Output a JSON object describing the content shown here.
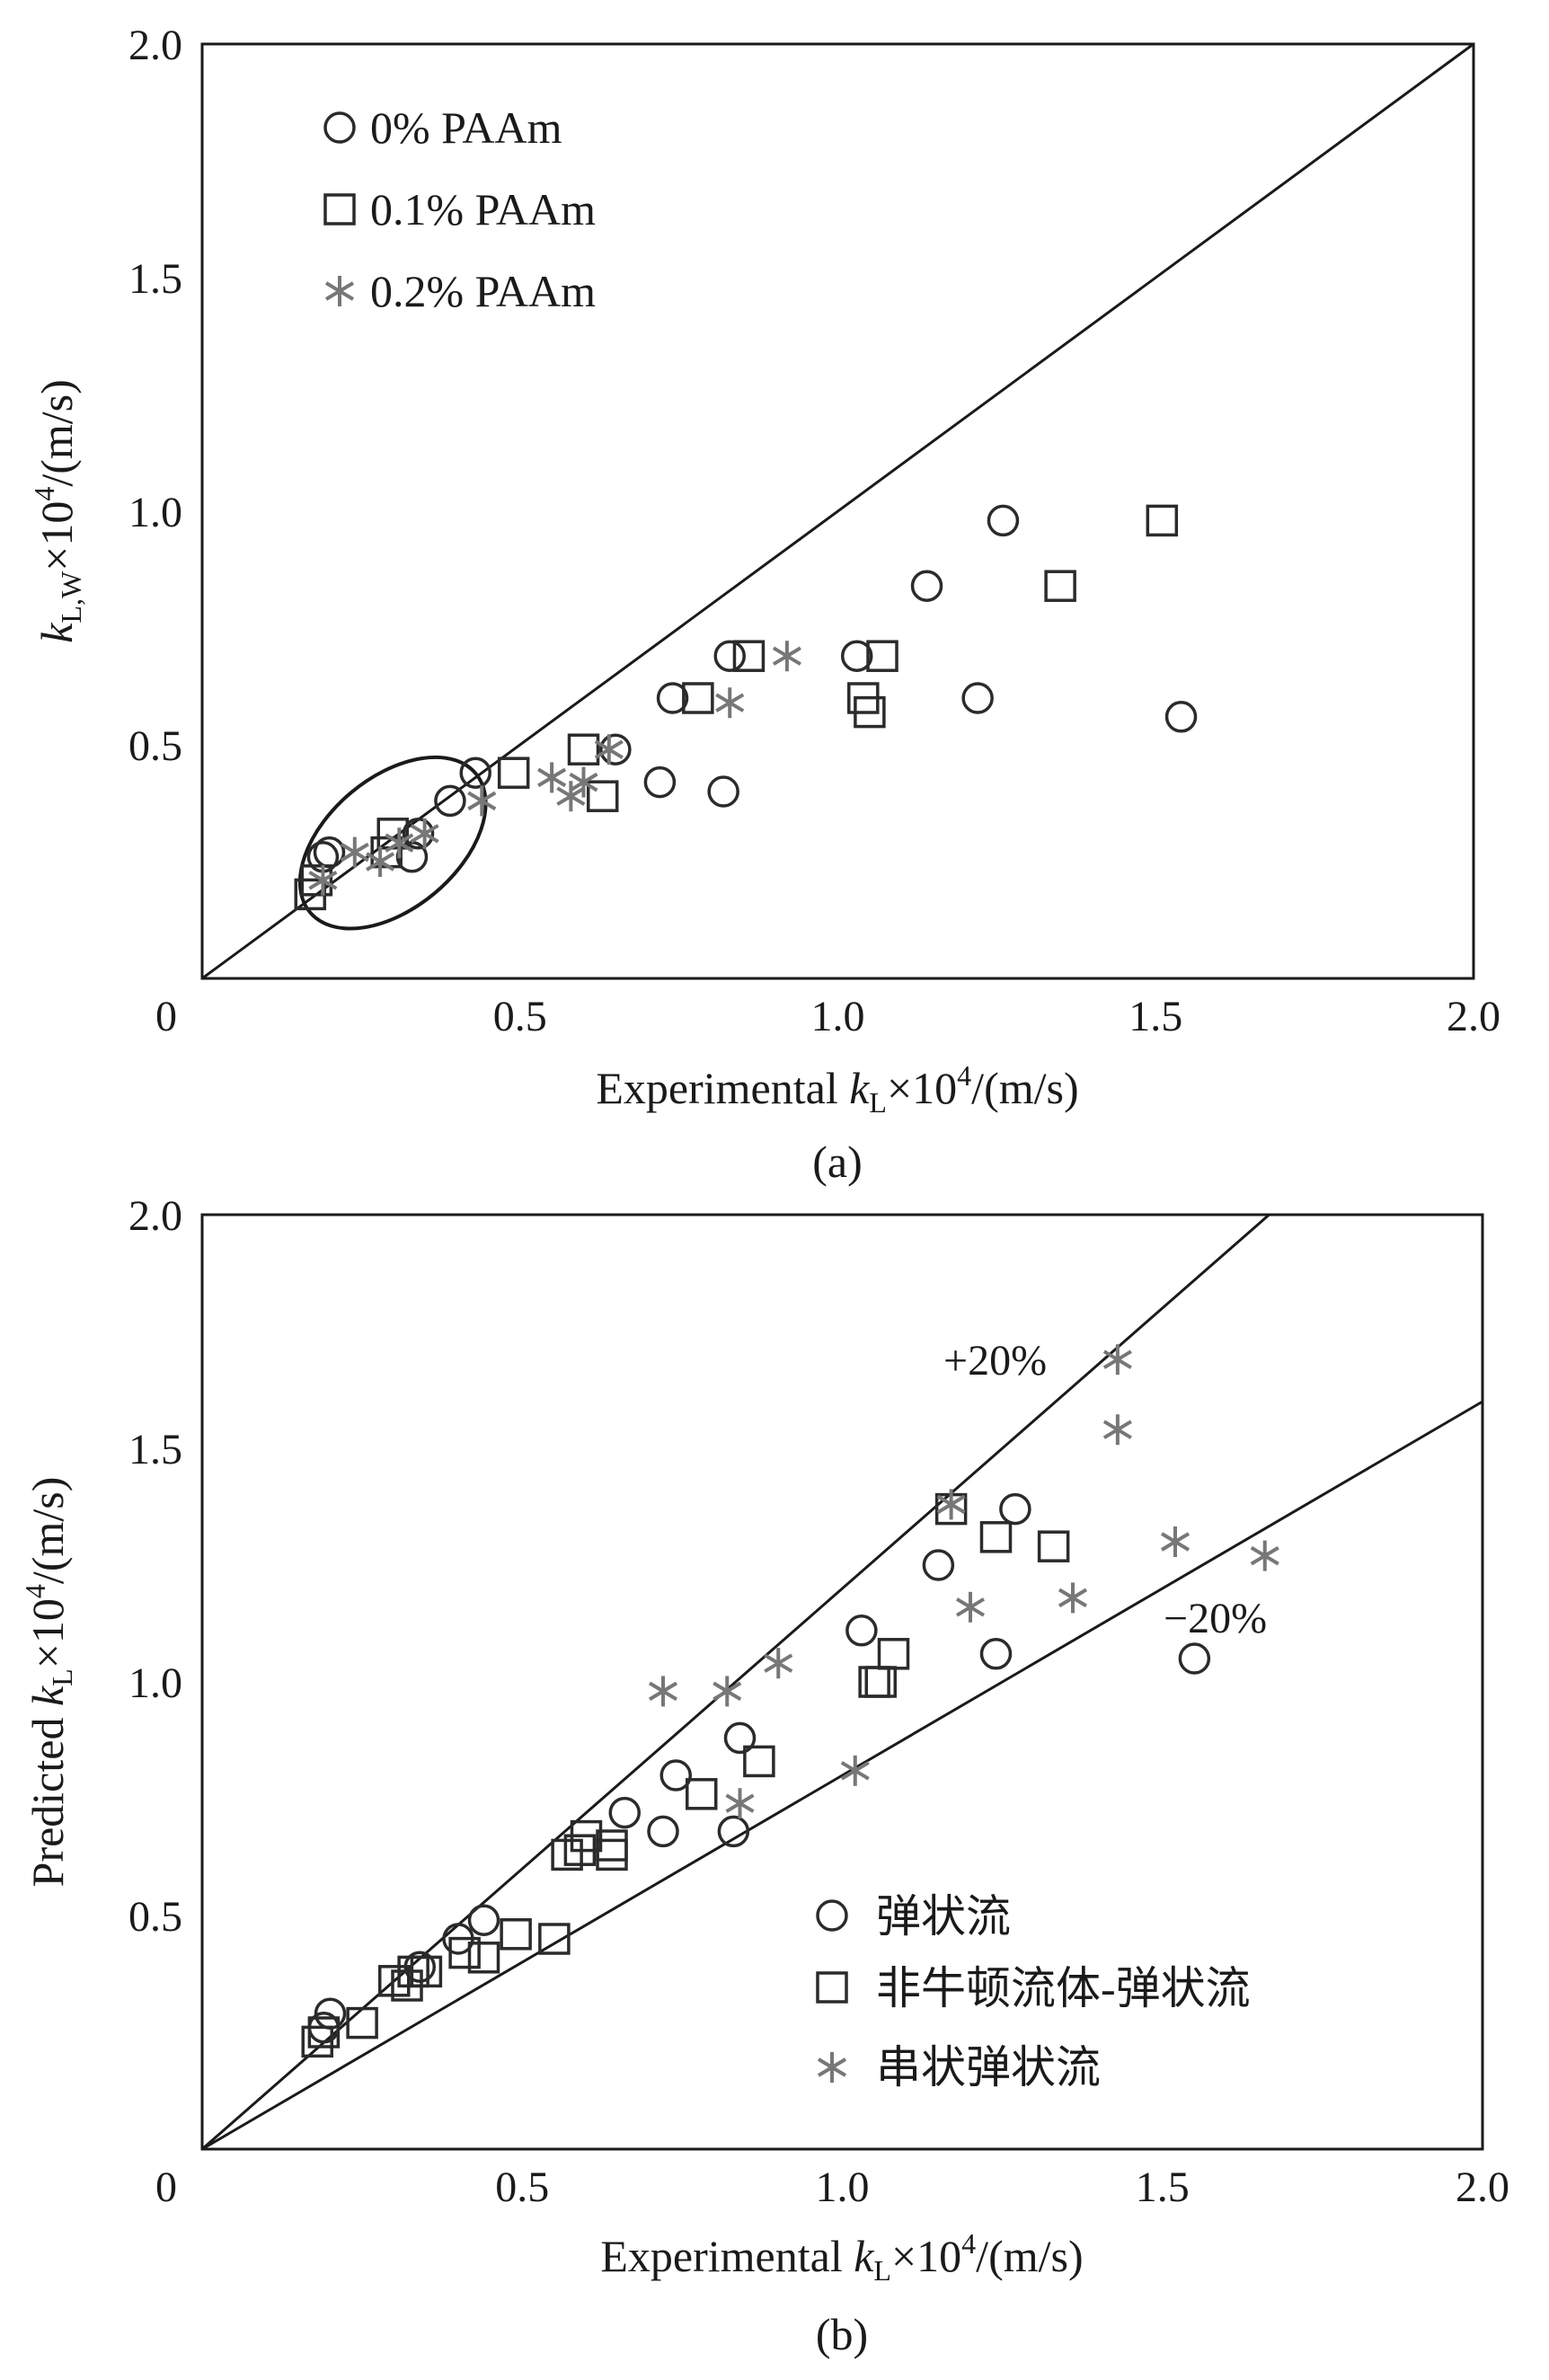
{
  "chart_data": [
    {
      "panel": "a",
      "type": "scatter",
      "caption": "(a)",
      "xlabel": {
        "main": "Experimental ",
        "italic": "k",
        "sub": "L",
        "tail": "×10",
        "sup": "4",
        "unit": "/(m/s)"
      },
      "ylabel": {
        "italic": "k",
        "sub": "L,W",
        "tail": "×10",
        "sup": "4",
        "unit": "/(m/s)"
      },
      "xlim": [
        0,
        2.0
      ],
      "ylim": [
        0,
        2.0
      ],
      "xticks": [
        "0",
        "0.5",
        "1.0",
        "1.5",
        "2.0"
      ],
      "yticks": [
        "0.5",
        "1.0",
        "1.5",
        "2.0"
      ],
      "reference_lines": [
        {
          "name": "y = x",
          "slope": 1.0
        }
      ],
      "annotations": [
        {
          "name": "highlight-ellipse",
          "shape": "ellipse",
          "center": [
            0.3,
            0.29
          ],
          "radii": [
            0.17,
            0.14
          ],
          "angle_deg": -40
        }
      ],
      "legend_position": "top-left",
      "series": [
        {
          "name": "0% PAAm",
          "marker": "circle",
          "color": "#2b2b2b",
          "points": [
            [
              0.19,
              0.26
            ],
            [
              0.2,
              0.27
            ],
            [
              0.33,
              0.26
            ],
            [
              0.34,
              0.31
            ],
            [
              0.39,
              0.38
            ],
            [
              0.43,
              0.44
            ],
            [
              0.65,
              0.49
            ],
            [
              0.72,
              0.42
            ],
            [
              0.74,
              0.6
            ],
            [
              0.82,
              0.4
            ],
            [
              0.83,
              0.69
            ],
            [
              1.03,
              0.69
            ],
            [
              1.14,
              0.84
            ],
            [
              1.22,
              0.6
            ],
            [
              1.26,
              0.98
            ],
            [
              1.54,
              0.56
            ]
          ]
        },
        {
          "name": "0.1% PAAm",
          "marker": "square",
          "color": "#2b2b2b",
          "points": [
            [
              0.17,
              0.18
            ],
            [
              0.18,
              0.21
            ],
            [
              0.29,
              0.27
            ],
            [
              0.3,
              0.31
            ],
            [
              0.49,
              0.44
            ],
            [
              0.6,
              0.49
            ],
            [
              0.63,
              0.39
            ],
            [
              0.78,
              0.6
            ],
            [
              0.86,
              0.69
            ],
            [
              1.04,
              0.6
            ],
            [
              1.05,
              0.57
            ],
            [
              1.07,
              0.69
            ],
            [
              1.35,
              0.84
            ],
            [
              1.51,
              0.98
            ]
          ]
        },
        {
          "name": "0.2% PAAm",
          "marker": "asterisk",
          "color": "#777777",
          "points": [
            [
              0.19,
              0.21
            ],
            [
              0.24,
              0.27
            ],
            [
              0.28,
              0.25
            ],
            [
              0.31,
              0.29
            ],
            [
              0.35,
              0.31
            ],
            [
              0.44,
              0.38
            ],
            [
              0.55,
              0.43
            ],
            [
              0.58,
              0.39
            ],
            [
              0.6,
              0.42
            ],
            [
              0.64,
              0.49
            ],
            [
              0.83,
              0.59
            ],
            [
              0.92,
              0.69
            ]
          ]
        }
      ]
    },
    {
      "panel": "b",
      "type": "scatter",
      "caption": "(b)",
      "xlabel": {
        "main": "Experimental ",
        "italic": "k",
        "sub": "L",
        "tail": "×10",
        "sup": "4",
        "unit": "/(m/s)"
      },
      "ylabel": {
        "main": "Predicted ",
        "italic": "k",
        "sub": "L",
        "tail": "×10",
        "sup": "4",
        "unit": "/(m/s)"
      },
      "xlim": [
        0,
        2.0
      ],
      "ylim": [
        0,
        2.0
      ],
      "xticks": [
        "0",
        "0.5",
        "1.0",
        "1.5",
        "2.0"
      ],
      "yticks": [
        "0.5",
        "1.0",
        "1.5",
        "2.0"
      ],
      "reference_lines": [
        {
          "name": "+20%",
          "slope": 1.2,
          "label": "+20%"
        },
        {
          "name": "-20%",
          "slope": 0.8,
          "label": "−20%"
        }
      ],
      "legend_position": "bottom-right",
      "series": [
        {
          "name": "弹状流",
          "marker": "circle",
          "color": "#2b2b2b",
          "points": [
            [
              0.19,
              0.26
            ],
            [
              0.2,
              0.29
            ],
            [
              0.34,
              0.39
            ],
            [
              0.4,
              0.45
            ],
            [
              0.44,
              0.49
            ],
            [
              0.66,
              0.72
            ],
            [
              0.72,
              0.68
            ],
            [
              0.74,
              0.8
            ],
            [
              0.83,
              0.68
            ],
            [
              0.84,
              0.88
            ],
            [
              1.03,
              1.11
            ],
            [
              1.15,
              1.25
            ],
            [
              1.24,
              1.06
            ],
            [
              1.27,
              1.37
            ],
            [
              1.55,
              1.05
            ]
          ]
        },
        {
          "name": "非牛顿流体-弹状流",
          "marker": "square",
          "color": "#2b2b2b",
          "points": [
            [
              0.18,
              0.23
            ],
            [
              0.19,
              0.25
            ],
            [
              0.25,
              0.27
            ],
            [
              0.3,
              0.36
            ],
            [
              0.32,
              0.35
            ],
            [
              0.33,
              0.38
            ],
            [
              0.35,
              0.38
            ],
            [
              0.41,
              0.42
            ],
            [
              0.44,
              0.41
            ],
            [
              0.49,
              0.46
            ],
            [
              0.55,
              0.45
            ],
            [
              0.57,
              0.63
            ],
            [
              0.59,
              0.64
            ],
            [
              0.6,
              0.67
            ],
            [
              0.64,
              0.63
            ],
            [
              0.64,
              0.65
            ],
            [
              0.78,
              0.76
            ],
            [
              0.87,
              0.83
            ],
            [
              1.05,
              1.0
            ],
            [
              1.06,
              1.0
            ],
            [
              1.08,
              1.06
            ],
            [
              1.17,
              1.37
            ],
            [
              1.24,
              1.31
            ],
            [
              1.33,
              1.29
            ]
          ]
        },
        {
          "name": "串状弹状流",
          "marker": "asterisk",
          "color": "#777777",
          "points": [
            [
              0.72,
              0.98
            ],
            [
              0.82,
              0.98
            ],
            [
              0.84,
              0.74
            ],
            [
              0.9,
              1.04
            ],
            [
              1.02,
              0.81
            ],
            [
              1.2,
              1.16
            ],
            [
              1.36,
              1.18
            ],
            [
              1.43,
              1.54
            ],
            [
              1.43,
              1.69
            ],
            [
              1.52,
              1.3
            ],
            [
              1.66,
              1.27
            ],
            [
              1.17,
              1.38
            ]
          ]
        }
      ]
    }
  ]
}
